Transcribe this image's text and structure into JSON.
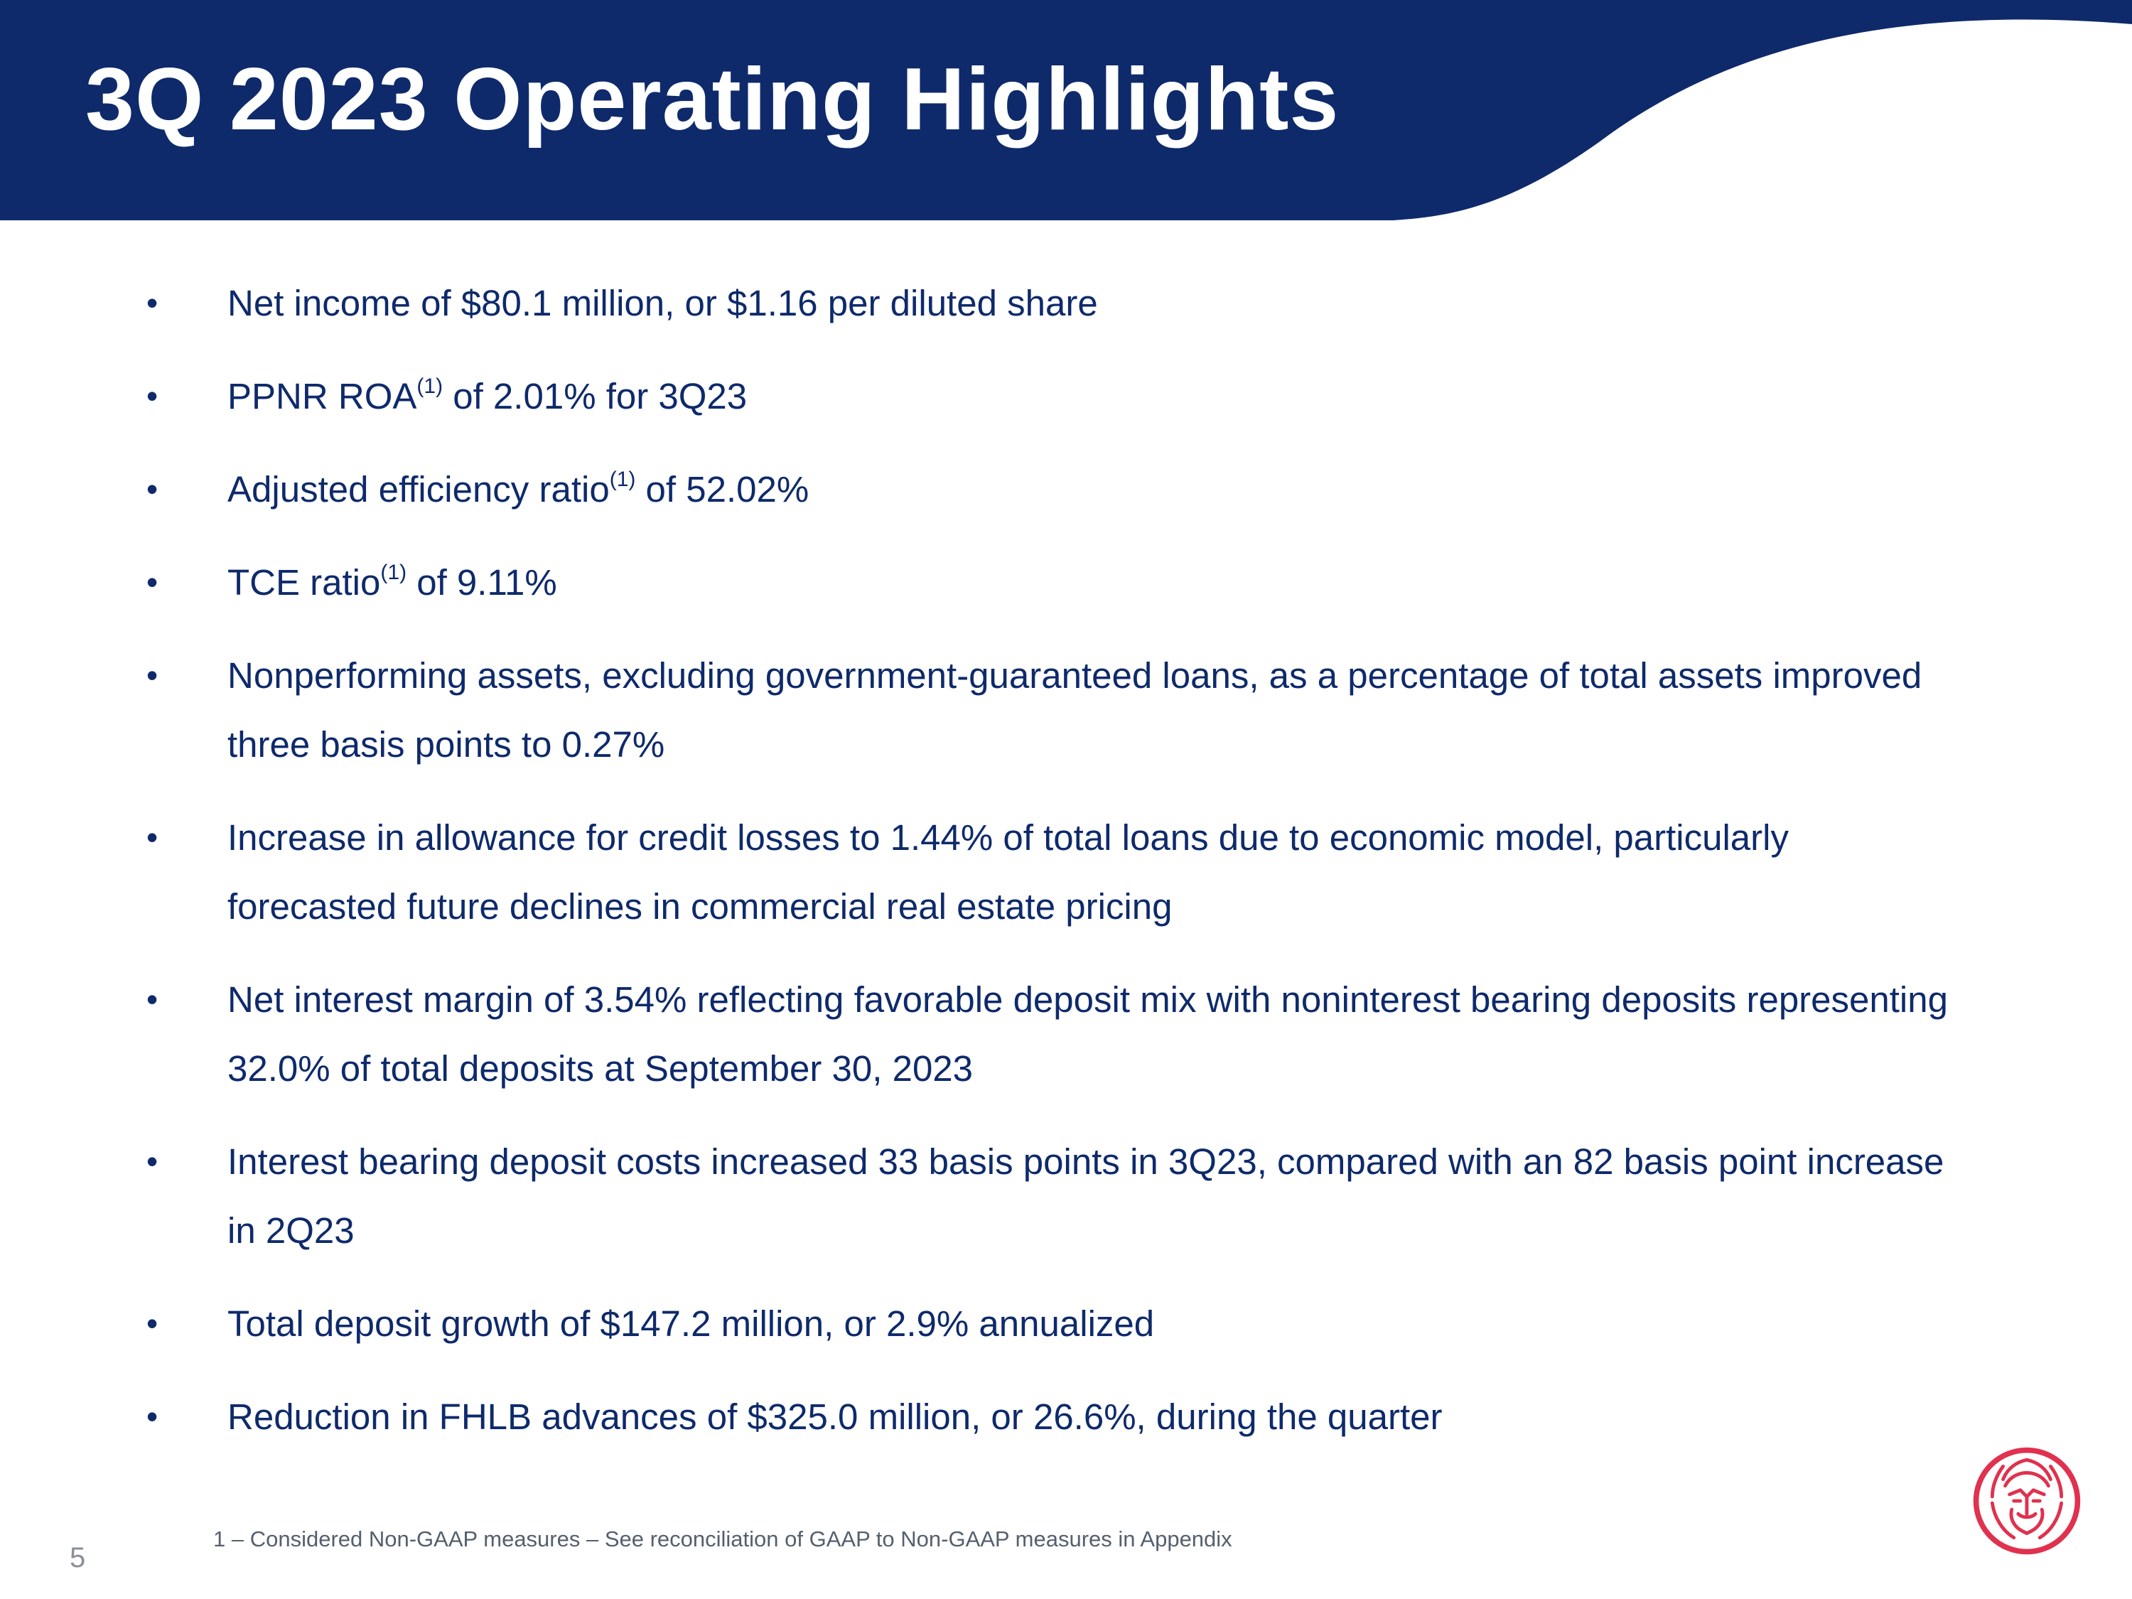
{
  "slide": {
    "title": "3Q 2023 Operating Highlights",
    "colors": {
      "navy": "#0e2a6b",
      "logo_red": "#e0314e"
    },
    "bullet_symbol": "•",
    "bullets": [
      {
        "text": "Net income of $80.1 million, or $1.16 per diluted share"
      },
      {
        "pre": "PPNR ROA",
        "sup": "(1)",
        "post": " of 2.01% for 3Q23"
      },
      {
        "pre": "Adjusted efficiency ratio",
        "sup": "(1)",
        "post": " of 52.02%"
      },
      {
        "pre": "TCE ratio",
        "sup": "(1)",
        "post": " of 9.11%"
      },
      {
        "text": "Nonperforming assets, excluding government-guaranteed loans, as a percentage of total assets improved three basis points to 0.27%"
      },
      {
        "text": "Increase in allowance for credit losses to 1.44% of total loans due to economic model, particularly forecasted future declines in commercial real estate pricing"
      },
      {
        "text": "Net interest margin of 3.54% reflecting favorable deposit mix with noninterest bearing deposits representing 32.0% of total deposits at September 30, 2023"
      },
      {
        "text": "Interest bearing deposit costs increased 33 basis points in 3Q23, compared with an 82 basis point increase in 2Q23"
      },
      {
        "text": "Total deposit growth of $147.2 million, or 2.9% annualized"
      },
      {
        "text": "Reduction in FHLB advances of $325.0 million, or 26.6%, during the quarter"
      }
    ],
    "footnote": "1 – Considered Non-GAAP measures – See reconciliation of GAAP to Non-GAAP measures in Appendix",
    "page_number": "5",
    "logo_icon": "lion-head-logo-icon"
  }
}
